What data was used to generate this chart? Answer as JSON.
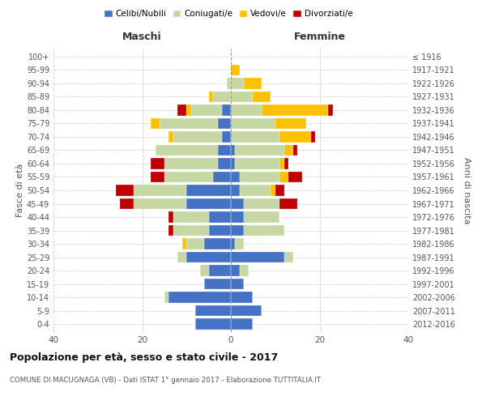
{
  "age_groups": [
    "0-4",
    "5-9",
    "10-14",
    "15-19",
    "20-24",
    "25-29",
    "30-34",
    "35-39",
    "40-44",
    "45-49",
    "50-54",
    "55-59",
    "60-64",
    "65-69",
    "70-74",
    "75-79",
    "80-84",
    "85-89",
    "90-94",
    "95-99",
    "100+"
  ],
  "birth_years": [
    "2012-2016",
    "2007-2011",
    "2002-2006",
    "1997-2001",
    "1992-1996",
    "1987-1991",
    "1982-1986",
    "1977-1981",
    "1972-1976",
    "1967-1971",
    "1962-1966",
    "1957-1961",
    "1952-1956",
    "1947-1951",
    "1942-1946",
    "1937-1941",
    "1932-1936",
    "1927-1931",
    "1922-1926",
    "1917-1921",
    "≤ 1916"
  ],
  "maschi": {
    "celibi": [
      8,
      8,
      14,
      6,
      5,
      10,
      6,
      5,
      5,
      10,
      10,
      4,
      3,
      3,
      2,
      3,
      2,
      0,
      0,
      0,
      0
    ],
    "coniugati": [
      0,
      0,
      1,
      0,
      2,
      2,
      4,
      8,
      8,
      12,
      12,
      11,
      12,
      14,
      11,
      13,
      7,
      4,
      1,
      0,
      0
    ],
    "vedovi": [
      0,
      0,
      0,
      0,
      0,
      0,
      1,
      0,
      0,
      0,
      0,
      0,
      0,
      0,
      1,
      2,
      1,
      1,
      0,
      0,
      0
    ],
    "divorziati": [
      0,
      0,
      0,
      0,
      0,
      0,
      0,
      1,
      1,
      3,
      4,
      3,
      3,
      0,
      0,
      0,
      2,
      0,
      0,
      0,
      0
    ]
  },
  "femmine": {
    "nubili": [
      5,
      7,
      5,
      3,
      2,
      12,
      1,
      3,
      3,
      3,
      2,
      2,
      1,
      1,
      0,
      0,
      0,
      0,
      0,
      0,
      0
    ],
    "coniugate": [
      0,
      0,
      0,
      0,
      2,
      2,
      2,
      9,
      8,
      8,
      7,
      9,
      10,
      11,
      11,
      10,
      7,
      5,
      3,
      0,
      0
    ],
    "vedove": [
      0,
      0,
      0,
      0,
      0,
      0,
      0,
      0,
      0,
      0,
      1,
      2,
      1,
      2,
      7,
      7,
      15,
      4,
      4,
      2,
      0
    ],
    "divorziate": [
      0,
      0,
      0,
      0,
      0,
      0,
      0,
      0,
      0,
      4,
      2,
      3,
      1,
      1,
      1,
      0,
      1,
      0,
      0,
      0,
      0
    ]
  },
  "colors": {
    "celibi": "#4472c4",
    "coniugati": "#c5d8a4",
    "vedovi": "#ffc000",
    "divorziati": "#c00000"
  },
  "title": "Popolazione per età, sesso e stato civile - 2017",
  "subtitle": "COMUNE DI MACUGNAGA (VB) - Dati ISTAT 1° gennaio 2017 - Elaborazione TUTTITALIA.IT",
  "xlabel_left": "Maschi",
  "xlabel_right": "Femmine",
  "ylabel_left": "Fasce di età",
  "ylabel_right": "Anni di nascita",
  "xlim": 40,
  "bg_color": "#ffffff",
  "grid_color": "#cccccc"
}
